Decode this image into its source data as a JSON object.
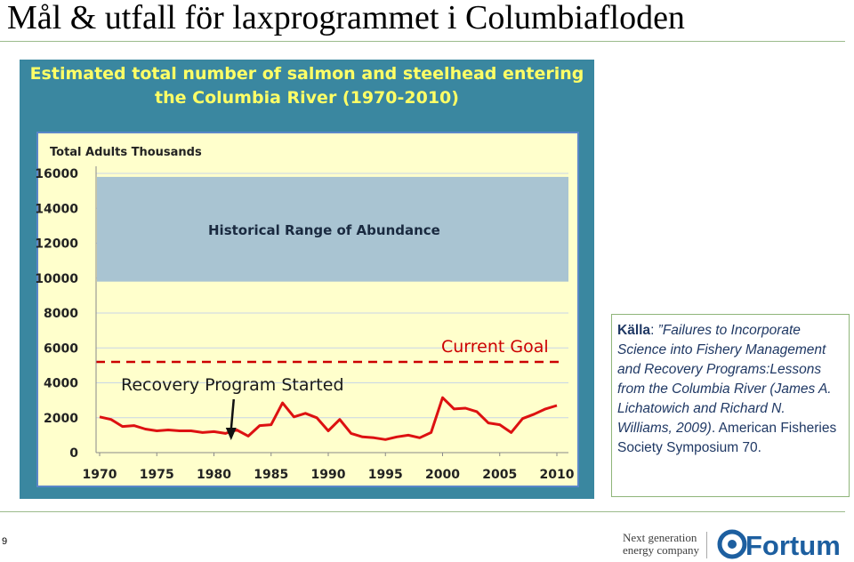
{
  "slide": {
    "title": "Mål & utfall för laxprogrammet i Columbiafloden",
    "page_number": "9"
  },
  "source": {
    "label": "Källa",
    "sep": ":",
    "italic_text": " ”Failures to Incorporate Science into Fishery Management and Recovery Programs:Lessons from the Columbia River (James A. Lichatowich and Richard N. Williams, 2009)",
    "rest_text": ". American Fisheries Society  Symposium 70."
  },
  "branding": {
    "tagline_line1": "Next generation",
    "tagline_line2": "energy company",
    "logo_text": "Fortum",
    "logo_color": "#1d5fa0"
  },
  "chart_data": {
    "type": "line",
    "title_line1": "Estimated total number of salmon and steelhead entering",
    "title_line2": "the Columbia River (1970-2010)",
    "ylabel": "Total Adults Thousands",
    "xlabel": "",
    "xlim": [
      1970,
      2010
    ],
    "ylim": [
      0,
      16000
    ],
    "x_ticks": [
      1970,
      1975,
      1980,
      1985,
      1990,
      1995,
      2000,
      2005,
      2010
    ],
    "y_ticks": [
      0,
      2000,
      4000,
      6000,
      8000,
      10000,
      12000,
      14000,
      16000
    ],
    "grid": true,
    "historical_range": {
      "label": "Historical Range of Abundance",
      "y_low": 9800,
      "y_high": 15800,
      "color": "#a9c4d2"
    },
    "current_goal": {
      "label": "Current Goal",
      "value": 5200,
      "color": "#cc0000"
    },
    "annotation": {
      "label": "Recovery Program Started",
      "x": 1981.5
    },
    "series": [
      {
        "color": "#dd1111",
        "x": [
          1970,
          1971,
          1972,
          1973,
          1974,
          1975,
          1976,
          1977,
          1978,
          1979,
          1980,
          1981,
          1982,
          1983,
          1984,
          1985,
          1986,
          1987,
          1988,
          1989,
          1990,
          1991,
          1992,
          1993,
          1994,
          1995,
          1996,
          1997,
          1998,
          1999,
          2000,
          2001,
          2002,
          2003,
          2004,
          2005,
          2006,
          2007,
          2008,
          2009,
          2010
        ],
        "values": [
          2050,
          1900,
          1500,
          1550,
          1350,
          1250,
          1300,
          1250,
          1250,
          1150,
          1200,
          1100,
          1300,
          950,
          1550,
          1600,
          2850,
          2050,
          2250,
          2000,
          1250,
          1900,
          1100,
          900,
          850,
          750,
          900,
          1000,
          850,
          1150,
          3150,
          2500,
          2550,
          2350,
          1700,
          1600,
          1150,
          1950,
          2200,
          2500,
          2700
        ]
      }
    ]
  }
}
